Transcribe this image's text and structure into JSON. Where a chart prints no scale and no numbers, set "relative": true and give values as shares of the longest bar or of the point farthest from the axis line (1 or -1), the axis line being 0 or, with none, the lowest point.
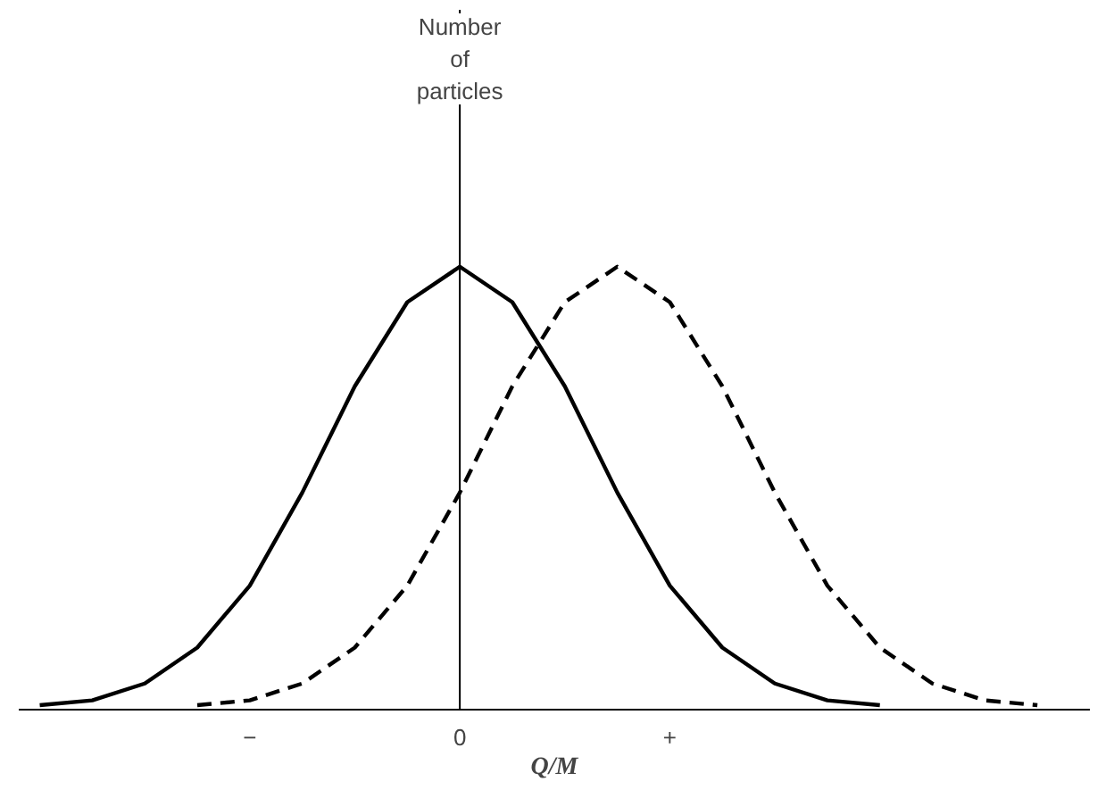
{
  "chart_data": {
    "type": "line",
    "relative": true,
    "xlabel": "Q/M",
    "annotations": [
      "Number\nof\nparticles"
    ],
    "categories": [
      null,
      null,
      null,
      null,
      "−",
      null,
      null,
      null,
      "0",
      null,
      null,
      null,
      "+",
      null,
      null,
      null,
      null,
      null,
      null,
      null
    ],
    "grid": false,
    "marker": "none",
    "ref_lines": [
      {
        "axis": "x",
        "value": "0",
        "label": null,
        "color": "#000000"
      }
    ],
    "series": [
      {
        "color": "#000000",
        "line_style": "solid",
        "values": [
          0.01,
          0.021,
          0.059,
          0.14,
          0.28,
          0.49,
          0.73,
          0.92,
          1,
          0.92,
          0.73,
          0.49,
          0.28,
          0.14,
          0.059,
          0.021,
          0.01,
          null,
          null,
          null
        ]
      },
      {
        "color": "#000000",
        "line_style": "dashed",
        "values": [
          null,
          null,
          null,
          0.01,
          0.021,
          0.059,
          0.14,
          0.28,
          0.49,
          0.73,
          0.92,
          1,
          0.92,
          0.73,
          0.49,
          0.28,
          0.14,
          0.059,
          0.021,
          0.01
        ]
      }
    ]
  }
}
